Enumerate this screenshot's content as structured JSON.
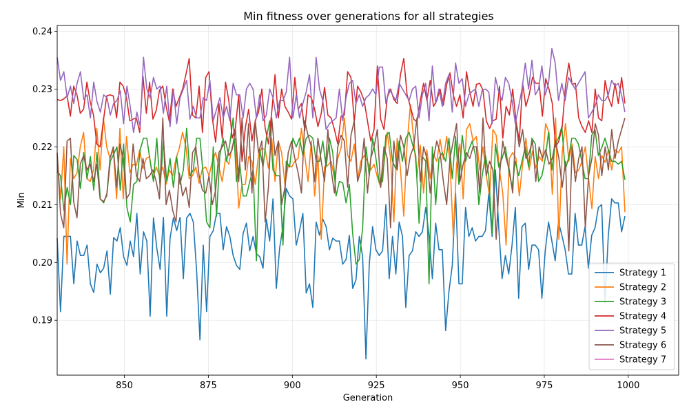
{
  "chart_data": {
    "type": "line",
    "title": "Min fitness over generations for all strategies",
    "xlabel": "Generation",
    "ylabel": "Min",
    "xlim": [
      830,
      1015
    ],
    "ylim": [
      0.1805,
      0.241
    ],
    "xticks": [
      850,
      875,
      900,
      925,
      950,
      975,
      1000
    ],
    "yticks": [
      0.19,
      0.2,
      0.21,
      0.22,
      0.23,
      0.24
    ],
    "grid": true,
    "legend_position": "lower-right",
    "x_start": 830,
    "x_end": 999,
    "series": [
      {
        "name": "Strategy 1",
        "color": "#1f77b4",
        "values": [
          0.2042,
          0.1915,
          0.2045,
          0.2045,
          0.2045,
          0.1963,
          0.2037,
          0.2012,
          0.2012,
          0.203,
          0.1963,
          0.1948,
          0.1997,
          0.1982,
          0.199,
          0.202,
          0.1945,
          0.2043,
          0.2037,
          0.206,
          0.201,
          0.1995,
          0.2037,
          0.201,
          0.2085,
          0.198,
          0.2053,
          0.2037,
          0.1907,
          0.2077,
          0.2025,
          0.1988,
          0.2078,
          0.1907,
          0.2042,
          0.2077,
          0.2055,
          0.2078,
          0.1972,
          0.2077,
          0.2085,
          0.207,
          0.1985,
          0.1866,
          0.203,
          0.1915,
          0.2045,
          0.2055,
          0.2085,
          0.2085,
          0.2022,
          0.2062,
          0.2045,
          0.2012,
          0.1995,
          0.1988,
          0.205,
          0.2068,
          0.202,
          0.2045,
          0.2015,
          0.201,
          0.199,
          0.2075,
          0.2037,
          0.211,
          0.1955,
          0.2025,
          0.2062,
          0.2128,
          0.2115,
          0.211,
          0.203,
          0.2055,
          0.2085,
          0.1947,
          0.1963,
          0.1922,
          0.207,
          0.2047,
          0.2075,
          0.2062,
          0.2022,
          0.2042,
          0.2037,
          0.2037,
          0.1997,
          0.2005,
          0.2047,
          0.1955,
          0.197,
          0.2045,
          0.201,
          0.1833,
          0.1997,
          0.2062,
          0.2022,
          0.2012,
          0.202,
          0.21,
          0.1972,
          0.2045,
          0.198,
          0.207,
          0.2045,
          0.1922,
          0.2012,
          0.202,
          0.2053,
          0.2045,
          0.2053,
          0.2095,
          0.2047,
          0.1972,
          0.2068,
          0.2022,
          0.2022,
          0.1882,
          0.195,
          0.1995,
          0.212,
          0.1963,
          0.1963,
          0.2095,
          0.2045,
          0.206,
          0.2037,
          0.2045,
          0.2045,
          0.2055,
          0.212,
          0.2045,
          0.216,
          0.206,
          0.1972,
          0.2012,
          0.198,
          0.203,
          0.2095,
          0.1938,
          0.2062,
          0.2068,
          0.1988,
          0.203,
          0.203,
          0.2022,
          0.1938,
          0.202,
          0.207,
          0.2037,
          0.2003,
          0.207,
          0.2047,
          0.2022,
          0.198,
          0.198,
          0.2085,
          0.203,
          0.203,
          0.2062,
          0.199,
          0.2047,
          0.206,
          0.2095,
          0.21,
          0.193,
          0.2047,
          0.211,
          0.2103,
          0.2103,
          0.2053,
          0.208
        ]
      },
      {
        "name": "Strategy 2",
        "color": "#ff7f0e",
        "values": [
          0.2185,
          0.211,
          0.22,
          0.1997,
          0.218,
          0.2145,
          0.2155,
          0.22,
          0.2225,
          0.2145,
          0.214,
          0.216,
          0.2232,
          0.216,
          0.225,
          0.22,
          0.218,
          0.2195,
          0.211,
          0.2232,
          0.211,
          0.2218,
          0.2155,
          0.217,
          0.2168,
          0.2195,
          0.2162,
          0.218,
          0.2183,
          0.2145,
          0.2165,
          0.215,
          0.2165,
          0.2135,
          0.216,
          0.215,
          0.218,
          0.2198,
          0.2225,
          0.22,
          0.2145,
          0.215,
          0.2165,
          0.2137,
          0.2162,
          0.2165,
          0.215,
          0.2175,
          0.219,
          0.2165,
          0.214,
          0.218,
          0.217,
          0.22,
          0.2215,
          0.2094,
          0.2135,
          0.2135,
          0.2183,
          0.2175,
          0.2135,
          0.2187,
          0.2198,
          0.2195,
          0.2163,
          0.2215,
          0.214,
          0.221,
          0.219,
          0.2135,
          0.2168,
          0.2165,
          0.2175,
          0.218,
          0.2232,
          0.2185,
          0.214,
          0.221,
          0.2115,
          0.2185,
          0.204,
          0.2165,
          0.2168,
          0.2175,
          0.2145,
          0.218,
          0.2198,
          0.225,
          0.2185,
          0.2175,
          0.2205,
          0.2145,
          0.2175,
          0.2185,
          0.2175,
          0.216,
          0.217,
          0.2148,
          0.213,
          0.217,
          0.2225,
          0.218,
          0.207,
          0.2215,
          0.2162,
          0.208,
          0.2205,
          0.2273,
          0.2213,
          0.2148,
          0.2203,
          0.212,
          0.2195,
          0.2145,
          0.2187,
          0.2175,
          0.2213,
          0.2178,
          0.2218,
          0.2175,
          0.2045,
          0.217,
          0.2205,
          0.211,
          0.223,
          0.224,
          0.221,
          0.2218,
          0.216,
          0.22,
          0.215,
          0.2115,
          0.223,
          0.222,
          0.216,
          0.212,
          0.203,
          0.218,
          0.219,
          0.218,
          0.2115,
          0.217,
          0.2215,
          0.216,
          0.2193,
          0.2163,
          0.2183,
          0.2175,
          0.224,
          0.2225,
          0.2118,
          0.225,
          0.204,
          0.219,
          0.224,
          0.2175,
          0.2205,
          0.2155,
          0.216,
          0.2175,
          0.22,
          0.2145,
          0.2093,
          0.2183,
          0.2145,
          0.2185,
          0.2173,
          0.2195,
          0.216,
          0.2195,
          0.219,
          0.22,
          0.2087
        ]
      },
      {
        "name": "Strategy 3",
        "color": "#2ca02c",
        "values": [
          0.2158,
          0.215,
          0.209,
          0.213,
          0.21,
          0.2185,
          0.2178,
          0.2128,
          0.219,
          0.2145,
          0.2183,
          0.2125,
          0.219,
          0.211,
          0.2103,
          0.212,
          0.2175,
          0.2187,
          0.22,
          0.2125,
          0.2205,
          0.2095,
          0.207,
          0.2135,
          0.214,
          0.2195,
          0.2215,
          0.2215,
          0.2175,
          0.214,
          0.2215,
          0.213,
          0.221,
          0.214,
          0.218,
          0.213,
          0.2183,
          0.2135,
          0.216,
          0.2232,
          0.215,
          0.216,
          0.2215,
          0.2215,
          0.215,
          0.207,
          0.206,
          0.22,
          0.208,
          0.2185,
          0.2215,
          0.2175,
          0.2205,
          0.225,
          0.214,
          0.217,
          0.2115,
          0.2115,
          0.214,
          0.216,
          0.2003,
          0.2195,
          0.2165,
          0.2215,
          0.2245,
          0.216,
          0.215,
          0.215,
          0.203,
          0.2175,
          0.2165,
          0.2215,
          0.22,
          0.2215,
          0.2185,
          0.2215,
          0.222,
          0.2215,
          0.2175,
          0.2175,
          0.221,
          0.2165,
          0.2215,
          0.219,
          0.2115,
          0.214,
          0.2138,
          0.2103,
          0.2135,
          0.205,
          0.1997,
          0.2005,
          0.206,
          0.22,
          0.215,
          0.2215,
          0.218,
          0.2138,
          0.214,
          0.222,
          0.2225,
          0.2175,
          0.2162,
          0.221,
          0.2175,
          0.2215,
          0.2225,
          0.2205,
          0.2185,
          0.2068,
          0.2183,
          0.2175,
          0.1963,
          0.22,
          0.21,
          0.218,
          0.219,
          0.2175,
          0.2215,
          0.2145,
          0.2218,
          0.2135,
          0.222,
          0.2175,
          0.2195,
          0.221,
          0.2185,
          0.21,
          0.215,
          0.2185,
          0.215,
          0.205,
          0.2205,
          0.2165,
          0.218,
          0.22,
          0.216,
          0.213,
          0.2175,
          0.215,
          0.2175,
          0.22,
          0.2165,
          0.2215,
          0.2205,
          0.214,
          0.215,
          0.218,
          0.2225,
          0.216,
          0.2205,
          0.2215,
          0.2235,
          0.216,
          0.218,
          0.2215,
          0.2215,
          0.2205,
          0.2175,
          0.2145,
          0.2145,
          0.222,
          0.223,
          0.2185,
          0.2198,
          0.2215,
          0.2195,
          0.2175,
          0.2175,
          0.217,
          0.2175,
          0.2143
        ]
      },
      {
        "name": "Strategy 4",
        "color": "#d62728",
        "values": [
          0.2282,
          0.228,
          0.2283,
          0.2288,
          0.2253,
          0.2305,
          0.229,
          0.2258,
          0.2265,
          0.2312,
          0.2278,
          0.2255,
          0.2205,
          0.22,
          0.2245,
          0.2288,
          0.229,
          0.2288,
          0.225,
          0.2312,
          0.2305,
          0.2285,
          0.2245,
          0.2248,
          0.225,
          0.2225,
          0.2322,
          0.2258,
          0.2312,
          0.2248,
          0.2263,
          0.2298,
          0.2305,
          0.227,
          0.2243,
          0.23,
          0.227,
          0.2285,
          0.23,
          0.2325,
          0.2353,
          0.2255,
          0.225,
          0.2305,
          0.2225,
          0.232,
          0.233,
          0.225,
          0.2208,
          0.2275,
          0.2215,
          0.2312,
          0.228,
          0.2215,
          0.2233,
          0.229,
          0.2175,
          0.2233,
          0.2265,
          0.221,
          0.2245,
          0.226,
          0.23,
          0.2233,
          0.2205,
          0.226,
          0.2325,
          0.225,
          0.23,
          0.227,
          0.226,
          0.2248,
          0.232,
          0.2265,
          0.2275,
          0.2228,
          0.229,
          0.2285,
          0.2265,
          0.2235,
          0.2258,
          0.2303,
          0.2255,
          0.225,
          0.223,
          0.2205,
          0.2253,
          0.2255,
          0.233,
          0.232,
          0.2243,
          0.2305,
          0.2295,
          0.228,
          0.2245,
          0.221,
          0.223,
          0.234,
          0.2248,
          0.223,
          0.2285,
          0.23,
          0.2282,
          0.2275,
          0.2325,
          0.2353,
          0.229,
          0.227,
          0.2248,
          0.2243,
          0.228,
          0.231,
          0.228,
          0.2315,
          0.227,
          0.228,
          0.23,
          0.2272,
          0.2308,
          0.2328,
          0.229,
          0.227,
          0.229,
          0.225,
          0.233,
          0.2295,
          0.227,
          0.2308,
          0.231,
          0.2298,
          0.2245,
          0.2232,
          0.2245,
          0.2248,
          0.2305,
          0.2215,
          0.227,
          0.2255,
          0.23,
          0.2245,
          0.221,
          0.231,
          0.227,
          0.229,
          0.232,
          0.231,
          0.231,
          0.2253,
          0.2318,
          0.23,
          0.2275,
          0.22,
          0.221,
          0.2235,
          0.2305,
          0.2345,
          0.2308,
          0.231,
          0.225,
          0.2235,
          0.2225,
          0.2245,
          0.2225,
          0.23,
          0.225,
          0.2245,
          0.2315,
          0.2285,
          0.227,
          0.231,
          0.2275,
          0.232,
          0.2275
        ]
      },
      {
        "name": "Strategy 5",
        "color": "#9467bd",
        "values": [
          0.2355,
          0.2315,
          0.233,
          0.2285,
          0.2305,
          0.2275,
          0.231,
          0.233,
          0.2282,
          0.229,
          0.225,
          0.2312,
          0.2278,
          0.226,
          0.229,
          0.2285,
          0.2255,
          0.2275,
          0.228,
          0.2297,
          0.224,
          0.2305,
          0.227,
          0.2225,
          0.226,
          0.2235,
          0.2355,
          0.23,
          0.2285,
          0.232,
          0.23,
          0.2305,
          0.2258,
          0.2305,
          0.2235,
          0.23,
          0.224,
          0.2285,
          0.23,
          0.2315,
          0.2248,
          0.227,
          0.225,
          0.225,
          0.2285,
          0.228,
          0.2315,
          0.2245,
          0.2265,
          0.2285,
          0.225,
          0.227,
          0.2245,
          0.231,
          0.229,
          0.229,
          0.225,
          0.23,
          0.231,
          0.23,
          0.225,
          0.229,
          0.2245,
          0.2255,
          0.23,
          0.2285,
          0.225,
          0.228,
          0.228,
          0.2295,
          0.2355,
          0.225,
          0.229,
          0.225,
          0.2275,
          0.2295,
          0.2325,
          0.225,
          0.2355,
          0.23,
          0.228,
          0.223,
          0.224,
          0.2245,
          0.225,
          0.23,
          0.2245,
          0.2285,
          0.231,
          0.2315,
          0.2275,
          0.229,
          0.227,
          0.2285,
          0.229,
          0.23,
          0.229,
          0.2338,
          0.2338,
          0.2275,
          0.23,
          0.229,
          0.228,
          0.231,
          0.23,
          0.229,
          0.228,
          0.23,
          0.2305,
          0.225,
          0.229,
          0.231,
          0.2245,
          0.234,
          0.2275,
          0.23,
          0.227,
          0.231,
          0.2325,
          0.226,
          0.2345,
          0.231,
          0.2318,
          0.227,
          0.229,
          0.2296,
          0.23,
          0.227,
          0.2298,
          0.23,
          0.2295,
          0.224,
          0.232,
          0.2295,
          0.228,
          0.232,
          0.231,
          0.228,
          0.224,
          0.227,
          0.23,
          0.2345,
          0.23,
          0.235,
          0.229,
          0.23,
          0.234,
          0.229,
          0.231,
          0.237,
          0.2345,
          0.228,
          0.231,
          0.228,
          0.232,
          0.231,
          0.23,
          0.231,
          0.232,
          0.233,
          0.225,
          0.226,
          0.227,
          0.229,
          0.228,
          0.228,
          0.229,
          0.2315,
          0.2305,
          0.231,
          0.229,
          0.226
        ]
      },
      {
        "name": "Strategy 6",
        "color": "#8c564b",
        "values": [
          0.219,
          0.2085,
          0.206,
          0.221,
          0.2215,
          0.2105,
          0.2077,
          0.217,
          0.2185,
          0.216,
          0.217,
          0.214,
          0.217,
          0.211,
          0.2105,
          0.2115,
          0.218,
          0.22,
          0.213,
          0.2205,
          0.218,
          0.211,
          0.212,
          0.2205,
          0.215,
          0.214,
          0.218,
          0.2145,
          0.215,
          0.216,
          0.214,
          0.211,
          0.225,
          0.21,
          0.2125,
          0.209,
          0.207,
          0.2155,
          0.2115,
          0.213,
          0.2095,
          0.219,
          0.22,
          0.215,
          0.2125,
          0.212,
          0.215,
          0.21,
          0.2125,
          0.219,
          0.22,
          0.221,
          0.2185,
          0.2195,
          0.223,
          0.214,
          0.225,
          0.216,
          0.224,
          0.212,
          0.2245,
          0.219,
          0.221,
          0.207,
          0.213,
          0.225,
          0.2185,
          0.221,
          0.21,
          0.213,
          0.219,
          0.221,
          0.218,
          0.2155,
          0.212,
          0.2245,
          0.222,
          0.22,
          0.214,
          0.2215,
          0.2175,
          0.214,
          0.223,
          0.216,
          0.212,
          0.22,
          0.222,
          0.221,
          0.213,
          0.222,
          0.2245,
          0.214,
          0.216,
          0.2215,
          0.212,
          0.218,
          0.22,
          0.223,
          0.213,
          0.22,
          0.218,
          0.206,
          0.221,
          0.216,
          0.222,
          0.22,
          0.215,
          0.2185,
          0.22,
          0.225,
          0.214,
          0.22,
          0.218,
          0.212,
          0.218,
          0.221,
          0.219,
          0.214,
          0.21,
          0.218,
          0.221,
          0.224,
          0.214,
          0.217,
          0.219,
          0.218,
          0.22,
          0.22,
          0.212,
          0.225,
          0.215,
          0.2175,
          0.216,
          0.204,
          0.215,
          0.221,
          0.218,
          0.216,
          0.212,
          0.224,
          0.22,
          0.223,
          0.218,
          0.219,
          0.221,
          0.214,
          0.22,
          0.218,
          0.2195,
          0.217,
          0.218,
          0.221,
          0.218,
          0.213,
          0.2175,
          0.202,
          0.22,
          0.214,
          0.218,
          0.22,
          0.206,
          0.215,
          0.218,
          0.224,
          0.222,
          0.215,
          0.22,
          0.216,
          0.223,
          0.218,
          0.221,
          0.223,
          0.225
        ]
      },
      {
        "name": "Strategy 7",
        "color": "#e377c2",
        "values": []
      }
    ]
  }
}
